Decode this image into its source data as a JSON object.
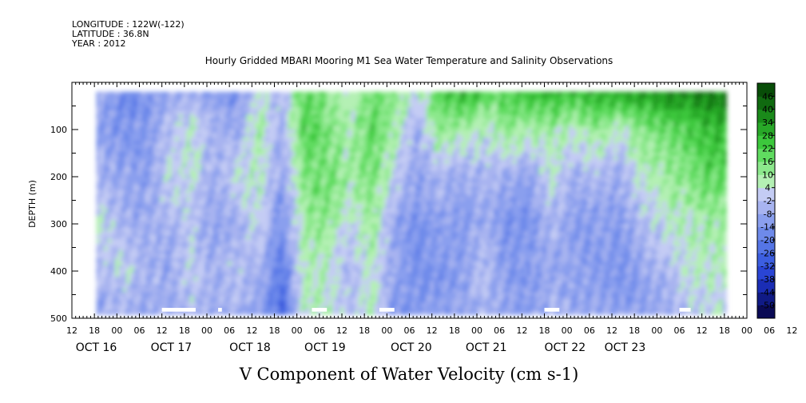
{
  "header": {
    "longitude": "LONGITUDE : 122W(-122)",
    "latitude": "LATITUDE : 36.8N",
    "year": "YEAR : 2012"
  },
  "chart_data": {
    "type": "heatmap",
    "title": "Hourly Gridded MBARI Mooring M1 Sea Water Temperature and Salinity Observations",
    "xlabel": "V Component of Water Velocity (cm s-1)",
    "ylabel": "DEPTH (m)",
    "ylim": [
      500,
      0
    ],
    "y_range_data": [
      20,
      485
    ],
    "x_hour_range": [
      0,
      180
    ],
    "data_hour_range": [
      6.5,
      174
    ],
    "y_ticks": [
      100,
      200,
      300,
      400,
      500
    ],
    "x_ticks_hour_labels": [
      "12",
      "18",
      "00",
      "06",
      "12",
      "18",
      "00",
      "06",
      "12",
      "18",
      "00",
      "06",
      "12",
      "18",
      "00",
      "06",
      "12",
      "18",
      "00",
      "06",
      "12",
      "18",
      "00",
      "06",
      "12",
      "18",
      "00",
      "06",
      "12",
      "18",
      "00",
      "06",
      "12"
    ],
    "day_labels": [
      {
        "label": "OCT 16",
        "hour": 1
      },
      {
        "label": "OCT 17",
        "hour": 21
      },
      {
        "label": "OCT 18",
        "hour": 42
      },
      {
        "label": "OCT 19",
        "hour": 62
      },
      {
        "label": "OCT 20",
        "hour": 85
      },
      {
        "label": "OCT 21",
        "hour": 105
      },
      {
        "label": "OCT 22",
        "hour": 126
      },
      {
        "label": "OCT 23",
        "hour": 142
      }
    ],
    "colorbar": {
      "levels": [
        -50,
        -44,
        -38,
        -32,
        -26,
        -20,
        -14,
        -8,
        -2,
        4,
        10,
        16,
        22,
        28,
        34,
        40,
        46
      ],
      "tick_labels": [
        "46",
        "40",
        "34",
        "28",
        "22",
        "16",
        "10",
        "4",
        "-2",
        "-8",
        "-14",
        "-20",
        "-26",
        "-32",
        "-38",
        "-44",
        "-50"
      ],
      "colors_low_to_high": [
        "#0a0a55",
        "#101a85",
        "#1a2db5",
        "#2a45d5",
        "#3c5ee0",
        "#5575e6",
        "#6e8aea",
        "#8a9fee",
        "#a8b4f0",
        "#c4ccf4",
        "#b4f0b4",
        "#8ce88c",
        "#60dc60",
        "#3cc83c",
        "#28a828",
        "#1a8a1a",
        "#106a10",
        "#084d08"
      ]
    },
    "time_profiles": [
      {
        "hour": 8,
        "values": [
          -8,
          -10,
          -6,
          4,
          -4,
          -8
        ]
      },
      {
        "hour": 14,
        "values": [
          -16,
          -14,
          -8,
          -6,
          2,
          -4
        ]
      },
      {
        "hour": 20,
        "values": [
          -14,
          -12,
          -10,
          -8,
          -6,
          -10
        ]
      },
      {
        "hour": 26,
        "values": [
          -6,
          -2,
          2,
          -4,
          -8,
          -6
        ]
      },
      {
        "hour": 32,
        "values": [
          -8,
          6,
          4,
          -2,
          2,
          -4
        ]
      },
      {
        "hour": 38,
        "values": [
          -12,
          -4,
          -8,
          -10,
          -6,
          -8
        ]
      },
      {
        "hour": 44,
        "values": [
          -14,
          -10,
          4,
          -6,
          -2,
          -6
        ]
      },
      {
        "hour": 50,
        "values": [
          4,
          10,
          6,
          2,
          -6,
          -10
        ]
      },
      {
        "hour": 56,
        "values": [
          -4,
          -6,
          -10,
          -14,
          -22,
          -26
        ]
      },
      {
        "hour": 62,
        "values": [
          20,
          22,
          14,
          10,
          8,
          6
        ]
      },
      {
        "hour": 68,
        "values": [
          14,
          16,
          18,
          12,
          4,
          6
        ]
      },
      {
        "hour": 74,
        "values": [
          4,
          8,
          10,
          2,
          -4,
          -2
        ]
      },
      {
        "hour": 80,
        "values": [
          18,
          20,
          16,
          10,
          6,
          8
        ]
      },
      {
        "hour": 86,
        "values": [
          14,
          10,
          2,
          -8,
          -10,
          -12
        ]
      },
      {
        "hour": 92,
        "values": [
          2,
          -6,
          -10,
          -14,
          -16,
          -12
        ]
      },
      {
        "hour": 98,
        "values": [
          22,
          12,
          -4,
          -10,
          -14,
          -10
        ]
      },
      {
        "hour": 104,
        "values": [
          28,
          10,
          -8,
          -12,
          -10,
          -8
        ]
      },
      {
        "hour": 110,
        "values": [
          22,
          4,
          -4,
          -6,
          -2,
          -6
        ]
      },
      {
        "hour": 116,
        "values": [
          20,
          14,
          -8,
          -14,
          -12,
          -10
        ]
      },
      {
        "hour": 122,
        "values": [
          28,
          8,
          -10,
          -14,
          -12,
          -10
        ]
      },
      {
        "hour": 128,
        "values": [
          30,
          10,
          4,
          -4,
          -8,
          -6
        ]
      },
      {
        "hour": 134,
        "values": [
          28,
          6,
          -6,
          -12,
          -10,
          -8
        ]
      },
      {
        "hour": 140,
        "values": [
          30,
          12,
          -4,
          -10,
          -12,
          -8
        ]
      },
      {
        "hour": 146,
        "values": [
          32,
          4,
          -8,
          -12,
          -14,
          -10
        ]
      },
      {
        "hour": 152,
        "values": [
          34,
          14,
          6,
          -4,
          -8,
          -10
        ]
      },
      {
        "hour": 158,
        "values": [
          36,
          18,
          10,
          4,
          -6,
          -8
        ]
      },
      {
        "hour": 164,
        "values": [
          38,
          22,
          14,
          6,
          4,
          -2
        ]
      },
      {
        "hour": 170,
        "values": [
          40,
          28,
          20,
          10,
          6,
          2
        ]
      }
    ],
    "profile_depths": [
      20,
      100,
      200,
      300,
      400,
      485
    ],
    "missing_segments": [
      {
        "from_hour": 24,
        "to_hour": 33
      },
      {
        "from_hour": 39,
        "to_hour": 40
      },
      {
        "from_hour": 64,
        "to_hour": 68
      },
      {
        "from_hour": 82,
        "to_hour": 86
      },
      {
        "from_hour": 126,
        "to_hour": 130
      },
      {
        "from_hour": 162,
        "to_hour": 165
      }
    ]
  }
}
